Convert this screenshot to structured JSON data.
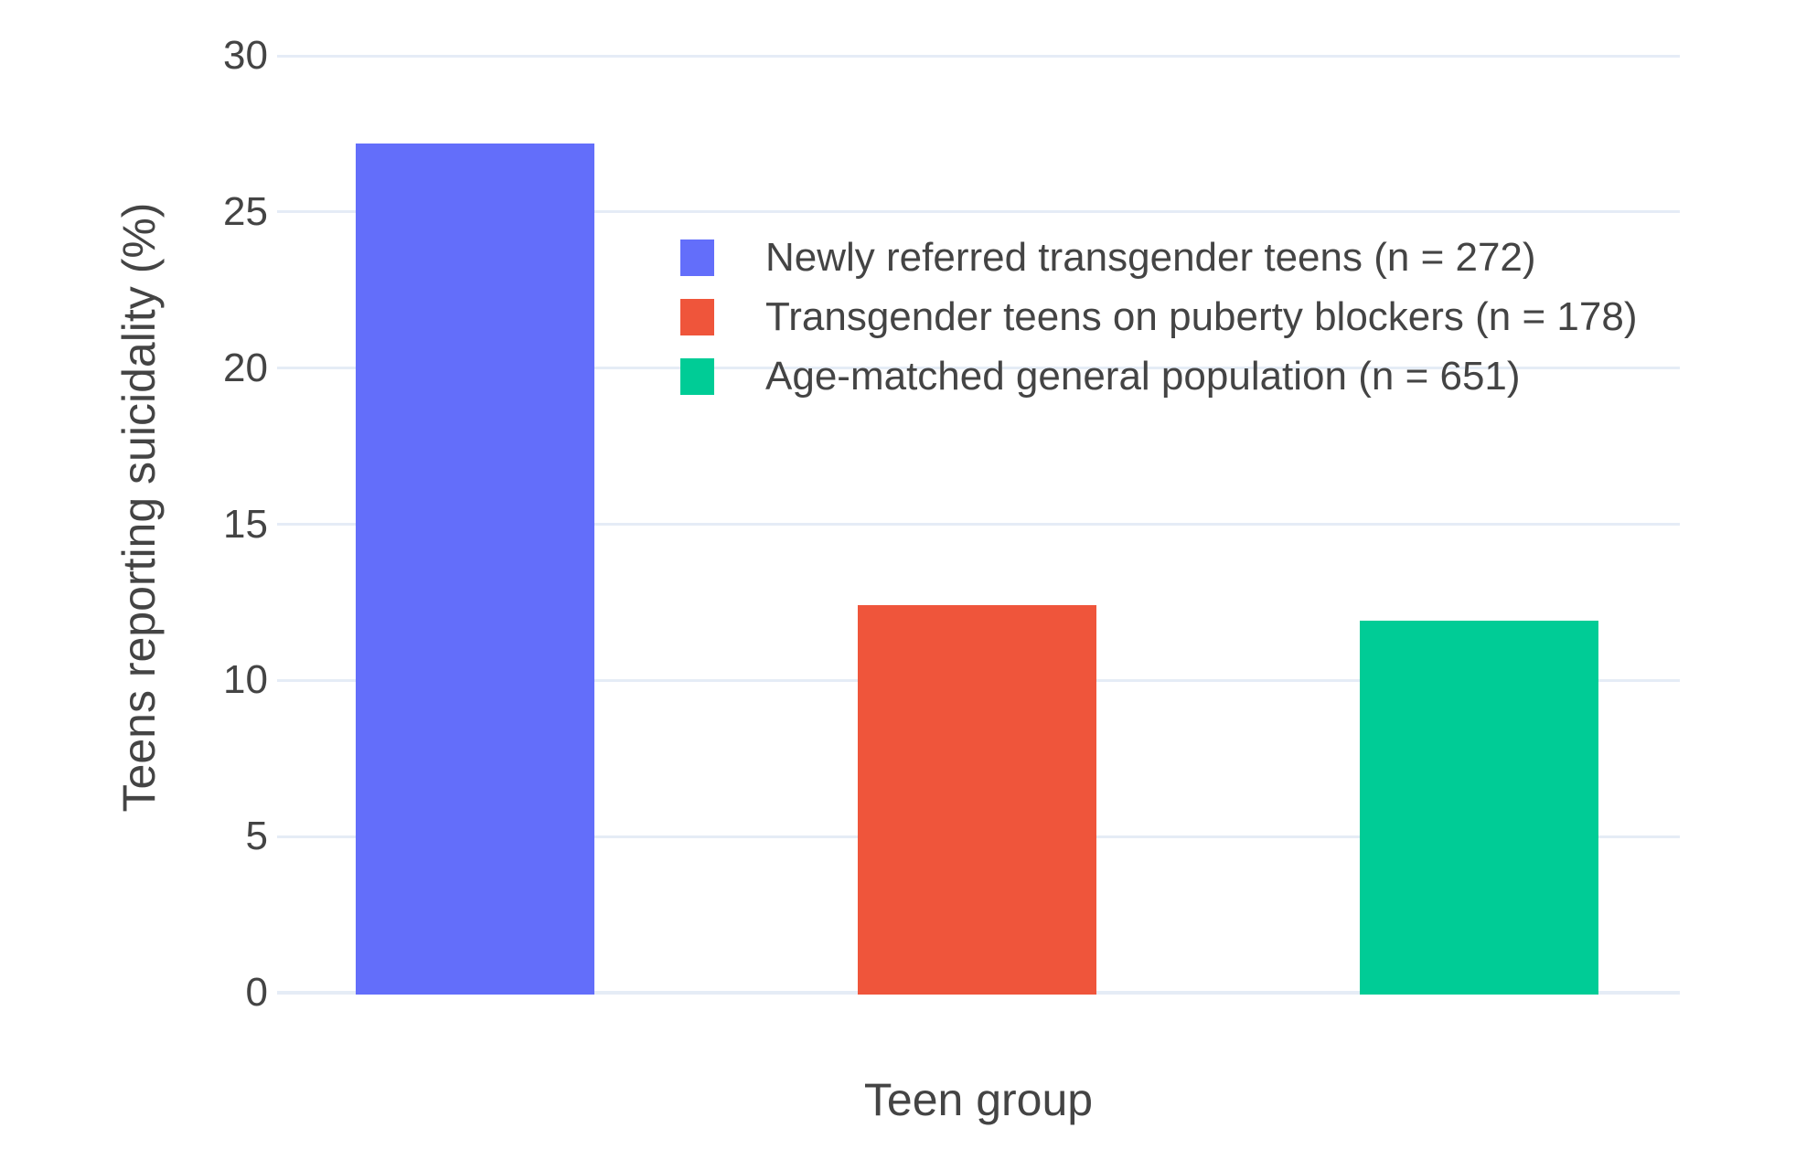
{
  "chart_data": {
    "type": "bar",
    "title": "",
    "xlabel": "Teen group",
    "ylabel": "Teens reporting suicidality (%)",
    "categories": [
      "Newly referred transgender teens (n = 272)",
      "Transgender teens on puberty blockers (n = 178)",
      "Age-matched general population (n = 651)"
    ],
    "values": [
      27.2,
      12.4,
      11.9
    ],
    "bar_colors": [
      "#636EFA",
      "#EF553B",
      "#00CC96"
    ],
    "ylim": [
      0,
      30
    ],
    "yticks": [
      0,
      5,
      10,
      15,
      20,
      25,
      30
    ],
    "grid": true,
    "gridline_color": "#E5ECF6",
    "text_color": "#444444",
    "background_color": "#FFFFFF",
    "legend_position": "inside-upper-right",
    "legend": [
      {
        "label": "Newly referred transgender teens (n = 272)",
        "color": "#636EFA"
      },
      {
        "label": "Transgender teens on puberty blockers (n = 178)",
        "color": "#EF553B"
      },
      {
        "label": "Age-matched general population (n = 651)",
        "color": "#00CC96"
      }
    ]
  }
}
